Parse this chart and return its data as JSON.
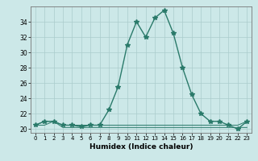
{
  "xlabel": "Humidex (Indice chaleur)",
  "x": [
    0,
    1,
    2,
    3,
    4,
    5,
    6,
    7,
    8,
    9,
    10,
    11,
    12,
    13,
    14,
    15,
    16,
    17,
    18,
    19,
    20,
    21,
    22,
    23
  ],
  "y_main": [
    20.5,
    21.0,
    21.0,
    20.5,
    20.5,
    20.3,
    20.5,
    20.5,
    22.5,
    25.5,
    31.0,
    34.0,
    32.0,
    34.5,
    35.5,
    32.5,
    28.0,
    24.5,
    22.0,
    21.0,
    21.0,
    20.5,
    20.0,
    21.0
  ],
  "y_flat1": [
    20.5,
    20.5,
    21.0,
    20.2,
    20.2,
    20.2,
    20.2,
    20.2,
    20.2,
    20.2,
    20.2,
    20.2,
    20.2,
    20.2,
    20.2,
    20.2,
    20.2,
    20.2,
    20.2,
    20.2,
    20.2,
    20.2,
    20.2,
    20.2
  ],
  "y_flat2": [
    20.5,
    21.0,
    21.0,
    20.5,
    20.5,
    20.5,
    20.5,
    20.5,
    20.5,
    20.5,
    20.5,
    20.5,
    20.5,
    20.5,
    20.5,
    20.5,
    20.5,
    20.5,
    20.5,
    20.5,
    20.5,
    20.5,
    20.5,
    21.0
  ],
  "ylim": [
    19.5,
    36.0
  ],
  "yticks": [
    20,
    22,
    24,
    26,
    28,
    30,
    32,
    34
  ],
  "line_color": "#2a7a6a",
  "bg_color": "#cce8e8",
  "grid_color": "#aacccc",
  "marker": "*",
  "linewidth": 1.0,
  "markersize": 4,
  "flat_linewidth": 0.7
}
